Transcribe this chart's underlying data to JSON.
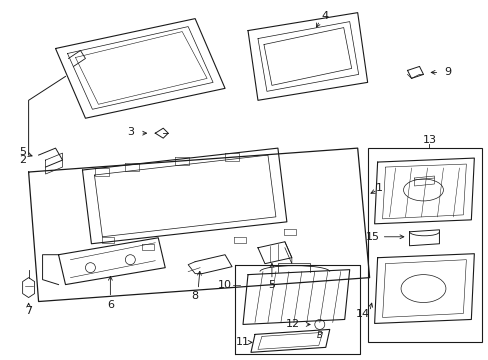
{
  "background_color": "#ffffff",
  "line_color": "#1a1a1a",
  "figure_width": 4.89,
  "figure_height": 3.6,
  "dpi": 100
}
